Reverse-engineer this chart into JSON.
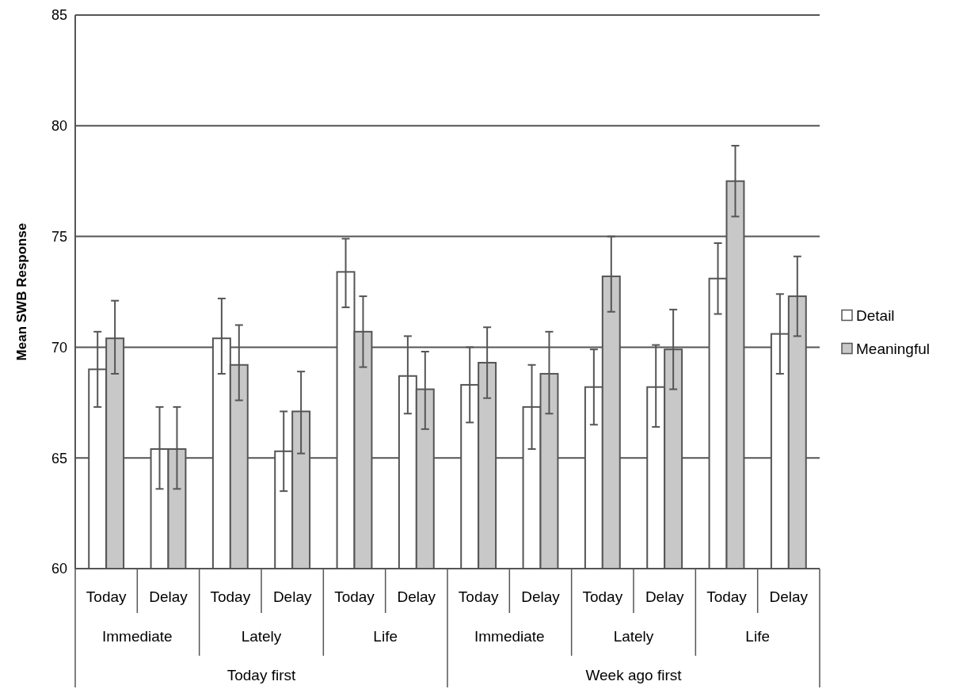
{
  "chart_data": {
    "type": "bar",
    "ylabel": "Mean SWB Response",
    "categories": [
      "Today",
      "Delay",
      "Today",
      "Delay",
      "Today",
      "Delay",
      "Today",
      "Delay",
      "Today",
      "Delay",
      "Today",
      "Delay"
    ],
    "annotations": [
      "Immediate",
      "Lately",
      "Life",
      "Immediate",
      "Lately",
      "Life",
      "Today first",
      "Week ago first"
    ],
    "series": [
      {
        "name": "Detail",
        "color": "#ffffff",
        "values": [
          69.0,
          65.4,
          70.4,
          65.3,
          73.4,
          68.7,
          68.3,
          67.3,
          68.2,
          68.2,
          73.1,
          70.6
        ],
        "errors": [
          [
            67.3,
            70.7
          ],
          [
            63.6,
            67.3
          ],
          [
            68.8,
            72.2
          ],
          [
            63.5,
            67.1
          ],
          [
            71.8,
            74.9
          ],
          [
            67.0,
            70.5
          ],
          [
            66.6,
            70.0
          ],
          [
            65.4,
            69.2
          ],
          [
            66.5,
            69.9
          ],
          [
            66.4,
            70.1
          ],
          [
            71.5,
            74.7
          ],
          [
            68.8,
            72.4
          ]
        ]
      },
      {
        "name": "Meaningful",
        "color": "#c8c8c8",
        "values": [
          70.4,
          65.4,
          69.2,
          67.1,
          70.7,
          68.1,
          69.3,
          68.8,
          73.2,
          69.9,
          77.5,
          72.3
        ],
        "errors": [
          [
            68.8,
            72.1
          ],
          [
            63.6,
            67.3
          ],
          [
            67.6,
            71.0
          ],
          [
            65.2,
            68.9
          ],
          [
            69.1,
            72.3
          ],
          [
            66.3,
            69.8
          ],
          [
            67.7,
            70.9
          ],
          [
            67.0,
            70.7
          ],
          [
            71.6,
            75.0
          ],
          [
            68.1,
            71.7
          ],
          [
            75.9,
            79.1
          ],
          [
            70.5,
            74.1
          ]
        ]
      }
    ],
    "ylim": [
      60,
      85
    ],
    "yticks": [
      60,
      65,
      70,
      75,
      80,
      85
    ],
    "grid": "y",
    "legend": "right"
  }
}
